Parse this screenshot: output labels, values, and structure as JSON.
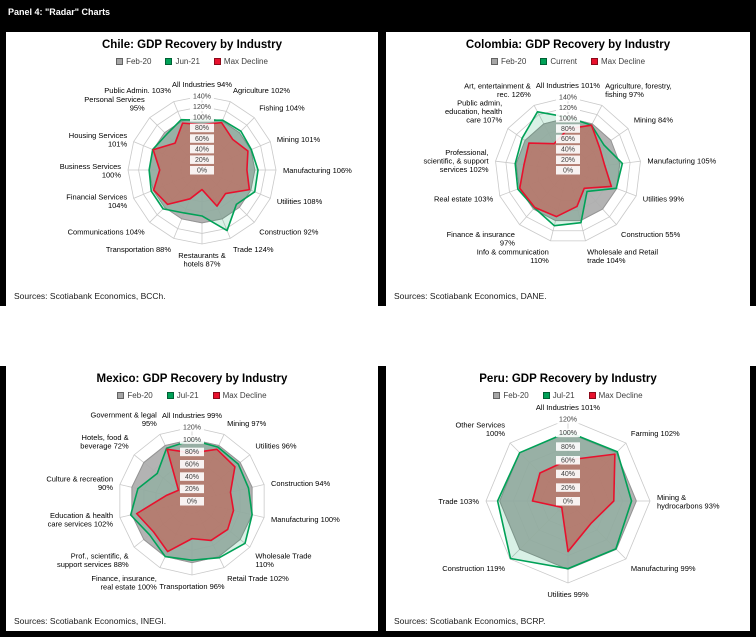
{
  "panel_header": "Panel 4: \"Radar\" Charts",
  "colors": {
    "header_bg": "#000000",
    "panel_bg": "#FFFFFF",
    "feb20_gray": "#A6A6A6",
    "recovery_green": "#00A157",
    "max_decline_red": "#E8112D",
    "grid_gray": "#C9C9C9"
  },
  "chart_data": [
    {
      "type": "radar",
      "title": "Chile: GDP Recovery by Industry",
      "sources": "Sources: Scotiabank Economics, BCCh.",
      "axis_max": 140,
      "tick_step": 20,
      "tick_labels": [
        "0%",
        "20%",
        "40%",
        "60%",
        "80%",
        "100%",
        "120%",
        "140%"
      ],
      "legend_position": "top",
      "grid": true,
      "categories": [
        "All Industries 94%",
        "Agriculture 102%",
        "Fishing 104%",
        "Mining 101%",
        "Manufacturing 106%",
        "Utilities 108%",
        "Construction 92%",
        "Trade 124%",
        "Restaurants &\nhotels 87%",
        "Transportation 88%",
        "Communications 104%",
        "Financial Services\n104%",
        "Business Services\n100%",
        "Housing Services\n101%",
        "Personal Services\n95%",
        "Public Admin. 103%"
      ],
      "series": [
        {
          "name": "Feb-20",
          "color": "#A6A6A6",
          "stroke": "#949494",
          "fill": "rgba(172,172,172,0.92)",
          "values": [
            100,
            100,
            100,
            100,
            100,
            100,
            100,
            100,
            100,
            100,
            100,
            100,
            100,
            100,
            100,
            100
          ]
        },
        {
          "name": "Jun-21",
          "color": "#00A157",
          "stroke": "#00A157",
          "fill": "rgba(0,161,87,0.15)",
          "values": [
            94,
            102,
            104,
            101,
            106,
            108,
            92,
            124,
            87,
            88,
            104,
            104,
            100,
            101,
            95,
            103
          ]
        },
        {
          "name": "Max Decline",
          "color": "#E8112D",
          "stroke": "#E8112D",
          "fill": "rgba(204,85,72,0.55)",
          "values": [
            86,
            97,
            82,
            94,
            85,
            97,
            63,
            74,
            37,
            59,
            92,
            99,
            80,
            100,
            72,
            96
          ]
        }
      ]
    },
    {
      "type": "radar",
      "title": "Colombia: GDP Recovery by Industry",
      "sources": "Sources: Scotiabank Economics, DANE.",
      "axis_max": 140,
      "tick_step": 20,
      "tick_labels": [
        "0%",
        "20%",
        "40%",
        "60%",
        "80%",
        "100%",
        "120%",
        "140%"
      ],
      "legend_position": "top",
      "grid": true,
      "categories": [
        "All Industries 101%",
        "Agriculture, forestry,\nfishing 97%",
        "Mining 84%",
        "Manufacturing 105%",
        "Utilities 99%",
        "Construction 55%",
        "Wholesale and Retail\ntrade 104%",
        "Info & communication\n110%",
        "Finance & insurance\n97%",
        "Real estate 103%",
        "Professional,\nscientific, & support\nservices 102%",
        "Public admin,\neducation, health\ncare 107%",
        "Art, entertainment &\nrec. 126%"
      ],
      "series": [
        {
          "name": "Feb-20",
          "color": "#A6A6A6",
          "stroke": "#949494",
          "fill": "rgba(172,172,172,0.92)",
          "values": [
            100,
            100,
            100,
            100,
            100,
            100,
            100,
            100,
            100,
            100,
            100,
            100,
            100
          ]
        },
        {
          "name": "Current",
          "color": "#00A157",
          "stroke": "#00A157",
          "fill": "rgba(0,161,87,0.15)",
          "values": [
            101,
            97,
            84,
            105,
            99,
            55,
            104,
            110,
            97,
            103,
            102,
            107,
            126
          ]
        },
        {
          "name": "Max Decline",
          "color": "#E8112D",
          "stroke": "#E8112D",
          "fill": "rgba(204,85,72,0.55)",
          "values": [
            79,
            97,
            74,
            71,
            89,
            47,
            72,
            92,
            96,
            99,
            85,
            91,
            57
          ]
        }
      ]
    },
    {
      "type": "radar",
      "title": "Mexico: GDP Recovery by Industry",
      "sources": "Sources: Scotiabank Economics, INEGI.",
      "axis_max": 120,
      "tick_step": 20,
      "tick_labels": [
        "0%",
        "20%",
        "40%",
        "60%",
        "80%",
        "100%",
        "120%"
      ],
      "legend_position": "top",
      "grid": true,
      "categories": [
        "All Industries 99%",
        "Mining 97%",
        "Utilities 96%",
        "Construction 94%",
        "Manufacturing 100%",
        "Wholesale Trade\n110%",
        "Retail Trade 102%",
        "Transportation 96%",
        "Finance, insurance,\nreal estate 100%",
        "Prof., scientific, &\nsupport services 88%",
        "Education & health\ncare services 102%",
        "Culture & recreation\n90%",
        "Hotels, food &\nbeverage 72%",
        "Government & legal\n95%"
      ],
      "series": [
        {
          "name": "Feb-20",
          "color": "#A6A6A6",
          "stroke": "#949494",
          "fill": "rgba(172,172,172,0.92)",
          "values": [
            100,
            100,
            100,
            100,
            100,
            100,
            100,
            100,
            100,
            100,
            100,
            100,
            100,
            100
          ]
        },
        {
          "name": "Jul-21",
          "color": "#00A157",
          "stroke": "#00A157",
          "fill": "rgba(0,161,87,0.15)",
          "values": [
            99,
            97,
            96,
            94,
            100,
            110,
            102,
            96,
            100,
            88,
            102,
            90,
            72,
            95
          ]
        },
        {
          "name": "Max Decline",
          "color": "#E8112D",
          "stroke": "#E8112D",
          "fill": "rgba(204,85,72,0.55)",
          "values": [
            78,
            93,
            89,
            64,
            69,
            74,
            71,
            61,
            91,
            80,
            92,
            42,
            28,
            93
          ]
        }
      ]
    },
    {
      "type": "radar",
      "title": "Peru: GDP Recovery by Industry",
      "sources": "Sources: Scotiabank Economics, BCRP.",
      "axis_max": 120,
      "tick_step": 20,
      "tick_labels": [
        "0%",
        "20%",
        "40%",
        "60%",
        "80%",
        "100%",
        "120%"
      ],
      "legend_position": "top",
      "grid": true,
      "categories": [
        "All Industries 101%",
        "Farming 102%",
        "Mining &\nhydrocarbons 93%",
        "Manufacturing 99%",
        "Utilities 99%",
        "Construction 119%",
        "Trade 103%",
        "Other Services\n100%"
      ],
      "series": [
        {
          "name": "Feb-20",
          "color": "#A6A6A6",
          "stroke": "#949494",
          "fill": "rgba(172,172,172,0.92)",
          "values": [
            100,
            100,
            100,
            100,
            100,
            100,
            100,
            100
          ]
        },
        {
          "name": "Jul-21",
          "color": "#00A157",
          "stroke": "#00A157",
          "fill": "rgba(0,161,87,0.15)",
          "values": [
            101,
            102,
            93,
            99,
            99,
            119,
            103,
            100
          ]
        },
        {
          "name": "Max Decline",
          "color": "#E8112D",
          "stroke": "#E8112D",
          "fill": "rgba(204,85,72,0.55)",
          "values": [
            60,
            97,
            67,
            47,
            74,
            13,
            52,
            58
          ]
        }
      ]
    }
  ]
}
